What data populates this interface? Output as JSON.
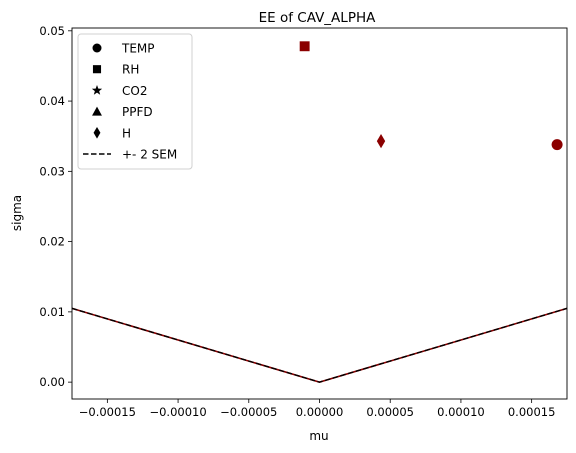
{
  "chart_data": {
    "type": "scatter",
    "title": "EE of CAV_ALPHA",
    "xlabel": "mu",
    "ylabel": "sigma",
    "xlim": [
      -0.000175,
      0.000175
    ],
    "ylim": [
      -0.0024,
      0.0504
    ],
    "xticks": [
      {
        "value": -0.00015,
        "label": "−0.00015"
      },
      {
        "value": -0.0001,
        "label": "−0.00010"
      },
      {
        "value": -5e-05,
        "label": "−0.00005"
      },
      {
        "value": 0,
        "label": "0.00000"
      },
      {
        "value": 5e-05,
        "label": "0.00005"
      },
      {
        "value": 0.0001,
        "label": "0.00010"
      },
      {
        "value": 0.00015,
        "label": "0.00015"
      }
    ],
    "yticks": [
      {
        "value": 0,
        "label": "0.00"
      },
      {
        "value": 0.01,
        "label": "0.01"
      },
      {
        "value": 0.02,
        "label": "0.02"
      },
      {
        "value": 0.03,
        "label": "0.03"
      },
      {
        "value": 0.04,
        "label": "0.04"
      },
      {
        "value": 0.05,
        "label": "0.05"
      }
    ],
    "points": [
      {
        "name": "TEMP",
        "marker": "circle",
        "x": 0.000168,
        "y": 0.0338
      },
      {
        "name": "RH",
        "marker": "square",
        "x": -1.05e-05,
        "y": 0.0478
      },
      {
        "name": "H",
        "marker": "diamond",
        "x": 4.35e-05,
        "y": 0.0343
      }
    ],
    "sem_line": {
      "name": "+- 2 SEM",
      "slope": 60,
      "style": "dashed"
    },
    "legend": {
      "position": "top-left",
      "entries": [
        {
          "label": "TEMP",
          "marker": "circle"
        },
        {
          "label": "RH",
          "marker": "square"
        },
        {
          "label": "CO2",
          "marker": "star"
        },
        {
          "label": "PPFD",
          "marker": "triangle"
        },
        {
          "label": "H",
          "marker": "diamond"
        },
        {
          "label": "+- 2 SEM",
          "marker": "dashed-line"
        }
      ]
    },
    "colors": {
      "marker": "#8b0000",
      "sem_line": "#8b0000",
      "sem_overlay": "#000000",
      "legend_marker": "#000000"
    },
    "grid": false
  }
}
